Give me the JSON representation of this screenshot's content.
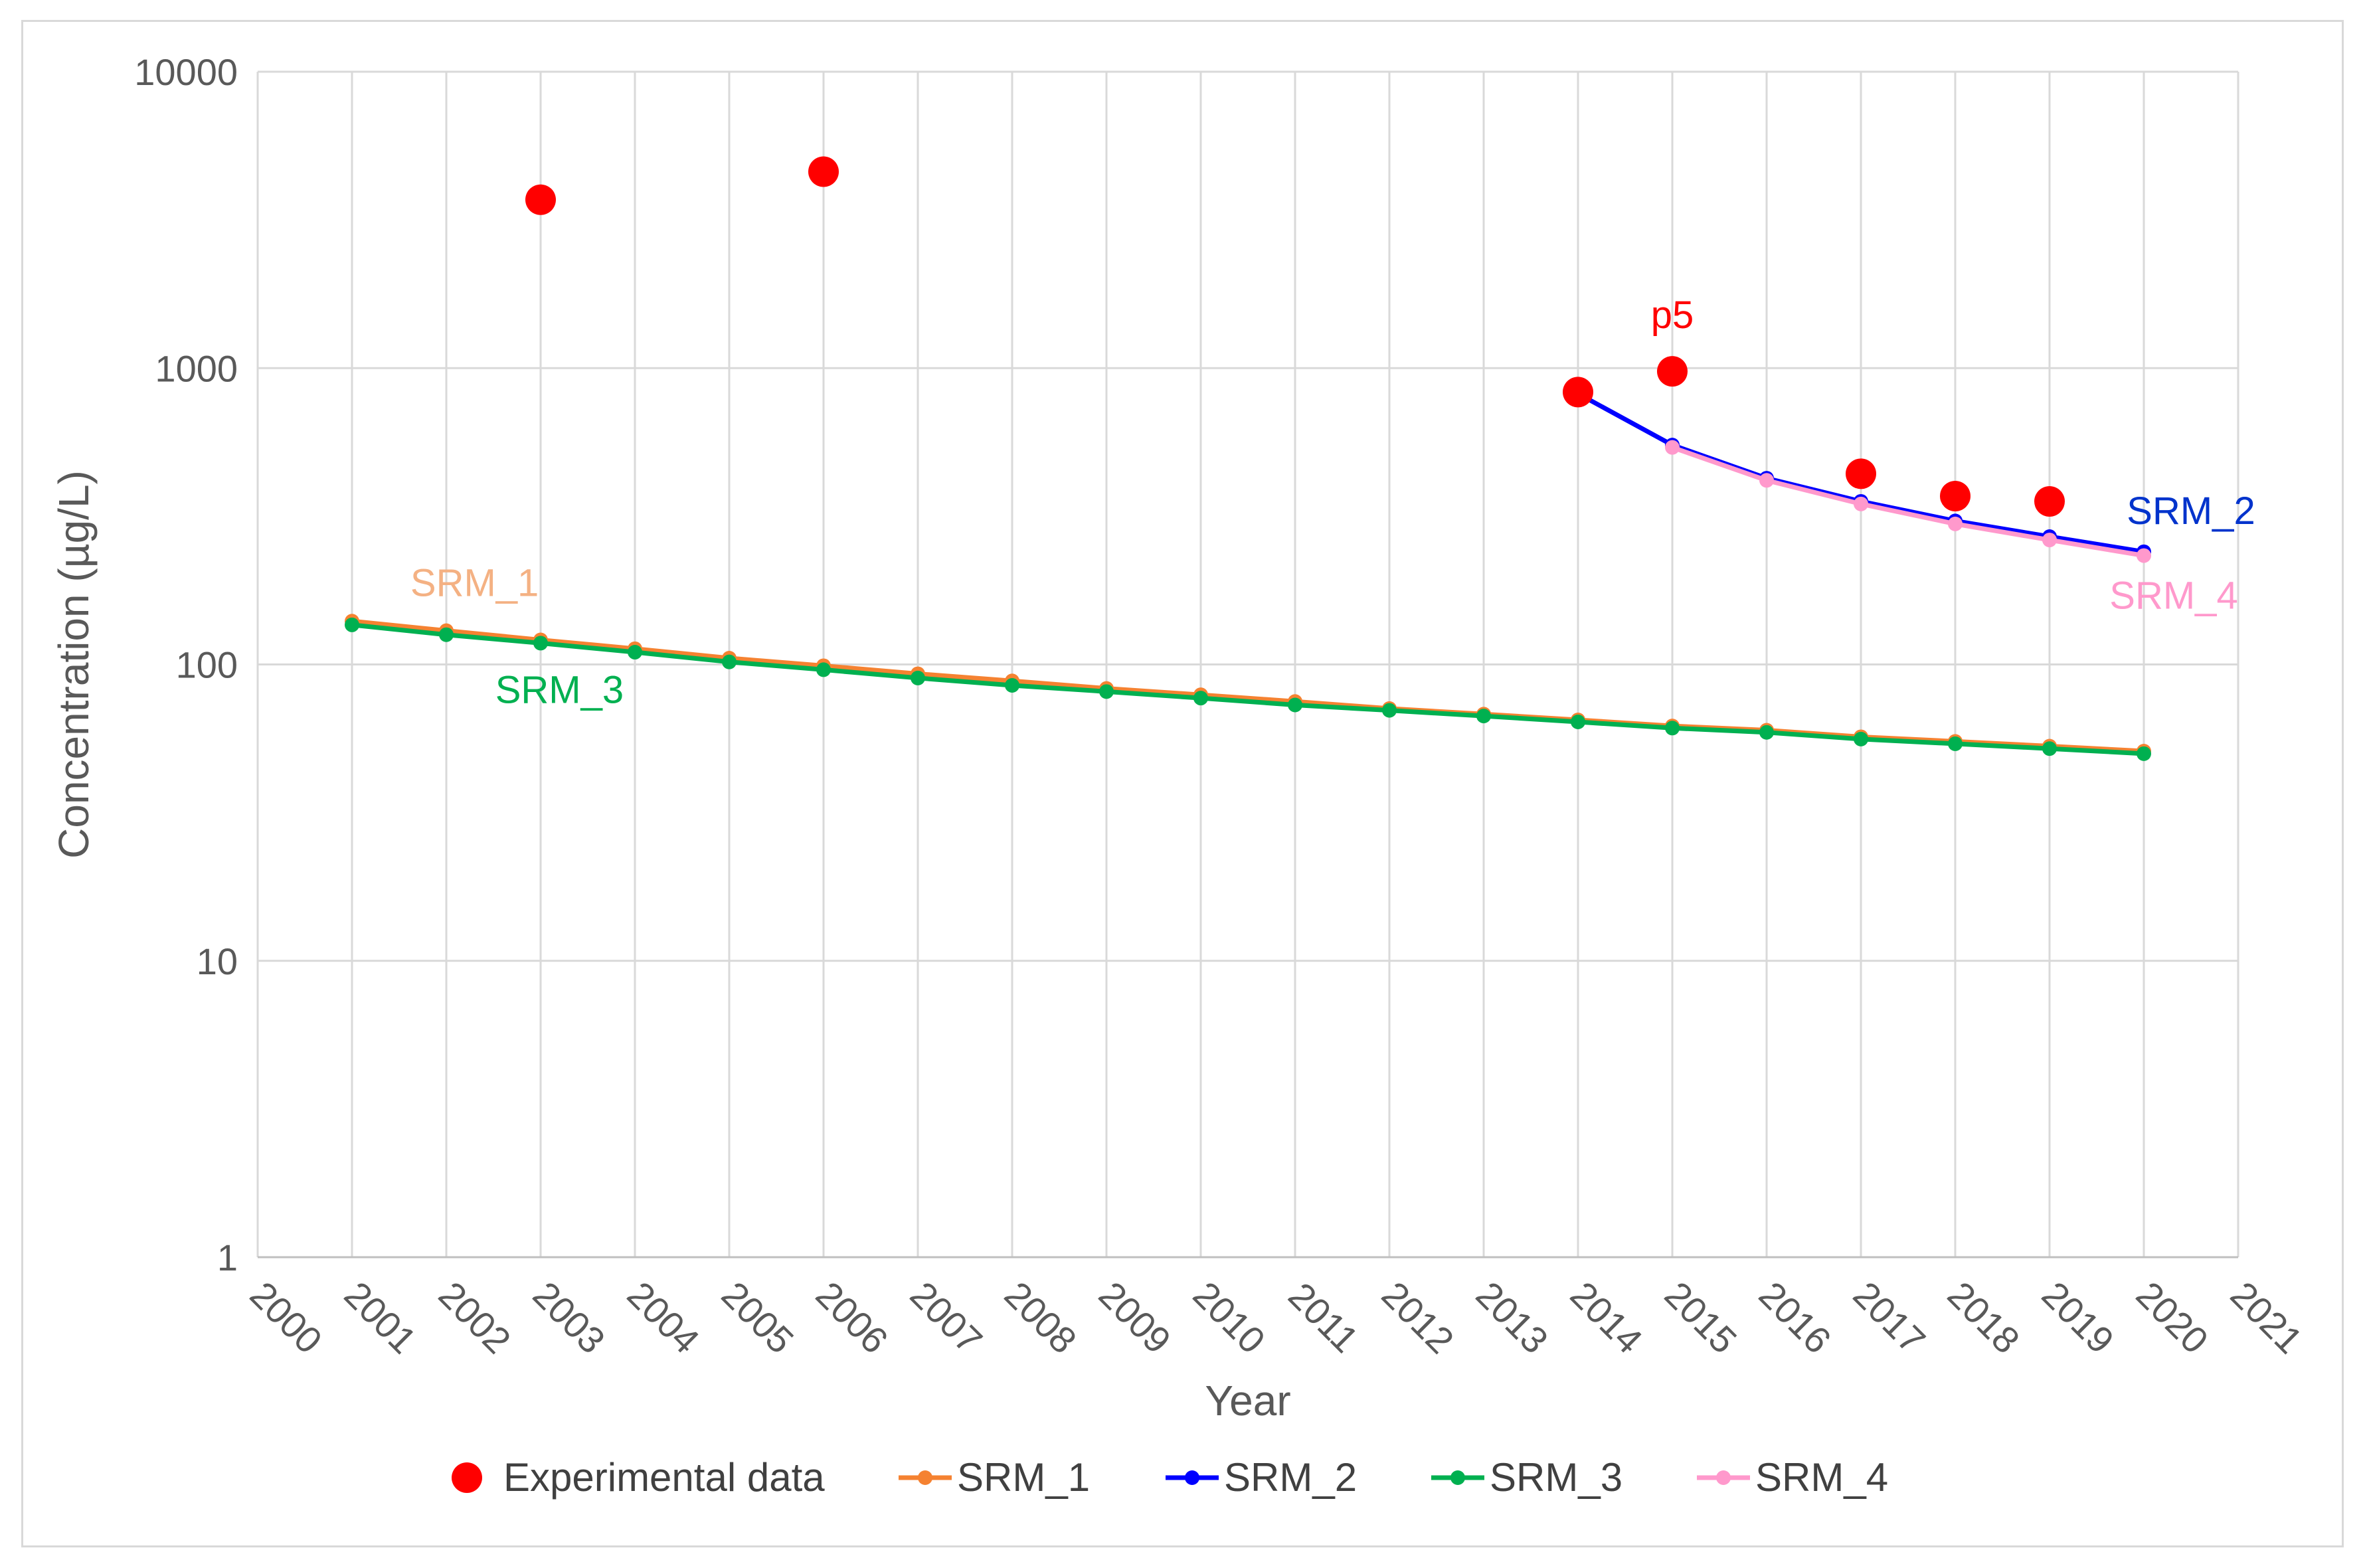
{
  "chart_data": {
    "type": "line",
    "xlabel": "Year",
    "ylabel": "Concentration  (µg/L)",
    "yscale": "log",
    "ylim": [
      1,
      10000
    ],
    "xlim": [
      2000,
      2021
    ],
    "x_ticks": [
      "2000",
      "2001",
      "2002",
      "2003",
      "2004",
      "2005",
      "2006",
      "2007",
      "2008",
      "2009",
      "2010",
      "2011",
      "2012",
      "2013",
      "2014",
      "2015",
      "2016",
      "2017",
      "2018",
      "2019",
      "2020",
      "2021"
    ],
    "y_ticks": [
      {
        "value": 1,
        "label": "1"
      },
      {
        "value": 10,
        "label": "10"
      },
      {
        "value": 100,
        "label": "100"
      },
      {
        "value": 1000,
        "label": "1000"
      },
      {
        "value": 10000,
        "label": "10000"
      }
    ],
    "grid": true,
    "legend_position": "bottom",
    "experimental": {
      "name": "Experimental data",
      "color": "#ff0000",
      "points": [
        {
          "x": 2003,
          "y": 3700
        },
        {
          "x": 2006,
          "y": 4600
        },
        {
          "x": 2014,
          "y": 830
        },
        {
          "x": 2015,
          "y": 975
        },
        {
          "x": 2017,
          "y": 440
        },
        {
          "x": 2018,
          "y": 370
        },
        {
          "x": 2019,
          "y": 355
        }
      ]
    },
    "series": [
      {
        "name": "SRM_1",
        "color": "#f58231",
        "x": [
          2001,
          2002,
          2003,
          2004,
          2005,
          2006,
          2007,
          2008,
          2009,
          2010,
          2011,
          2012,
          2013,
          2014,
          2015,
          2016,
          2017,
          2018,
          2019,
          2020
        ],
        "values": [
          140,
          130,
          121,
          113,
          105,
          99,
          93,
          88,
          83,
          79,
          75,
          71,
          68,
          65,
          62,
          60,
          57,
          55,
          53,
          51
        ]
      },
      {
        "name": "SRM_2",
        "color": "#0000ff",
        "x": [
          2014,
          2015,
          2016,
          2017,
          2018,
          2019,
          2020
        ],
        "values": [
          820,
          550,
          425,
          355,
          305,
          270,
          240
        ]
      },
      {
        "name": "SRM_3",
        "color": "#00b050",
        "x": [
          2001,
          2002,
          2003,
          2004,
          2005,
          2006,
          2007,
          2008,
          2009,
          2010,
          2011,
          2012,
          2013,
          2014,
          2015,
          2016,
          2017,
          2018,
          2019,
          2020
        ],
        "values": [
          136,
          126,
          118,
          110,
          102,
          96,
          90,
          85,
          81,
          77,
          73,
          70,
          67,
          64,
          61,
          59,
          56,
          54,
          52,
          50
        ]
      },
      {
        "name": "SRM_4",
        "color": "#ff99cc",
        "x": [
          2015,
          2016,
          2017,
          2018,
          2019,
          2020
        ],
        "values": [
          540,
          418,
          348,
          298,
          263,
          233
        ]
      }
    ],
    "annotations": [
      {
        "text": "p5",
        "color": "#ff0000",
        "x": 2015,
        "y": 975
      },
      {
        "text": "SRM_1",
        "color": "#f4b183",
        "x": 2002.3,
        "y": 140
      },
      {
        "text": "SRM_3",
        "color": "#00b050",
        "x": 2003.2,
        "y": 100
      },
      {
        "text": "SRM_2",
        "color": "#0033cc",
        "x": 2020.5,
        "y": 240
      },
      {
        "text": "SRM_4",
        "color": "#ff99cc",
        "x": 2020,
        "y": 233
      }
    ]
  }
}
